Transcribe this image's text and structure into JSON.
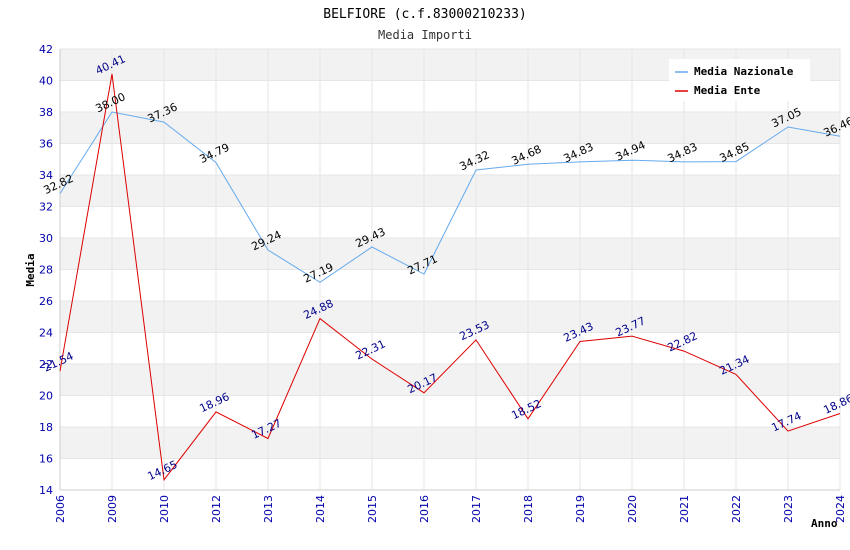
{
  "chart_data": {
    "type": "line",
    "title": "BELFIORE (c.f.83000210233)",
    "subtitle": "Media Importi",
    "xlabel": "Anno",
    "ylabel": "Media",
    "ylim": [
      14,
      42
    ],
    "yticks": [
      14,
      16,
      18,
      20,
      22,
      24,
      26,
      28,
      30,
      32,
      34,
      36,
      38,
      40,
      42
    ],
    "categories": [
      "2006",
      "2009",
      "2010",
      "2012",
      "2013",
      "2014",
      "2015",
      "2016",
      "2017",
      "2018",
      "2019",
      "2020",
      "2021",
      "2022",
      "2023",
      "2024"
    ],
    "legend_position": "top-right",
    "grid": true,
    "series": [
      {
        "name": "Media Nazionale",
        "color": "#66aaee",
        "values": [
          32.82,
          38.0,
          37.36,
          34.79,
          29.24,
          27.19,
          29.43,
          27.71,
          34.32,
          34.68,
          34.83,
          34.94,
          34.83,
          34.85,
          37.05,
          36.46
        ],
        "labels": [
          "32.82",
          "38.00",
          "37.36",
          "34.79",
          "29.24",
          "27.19",
          "29.43",
          "27.71",
          "34.32",
          "34.68",
          "34.83",
          "34.94",
          "34.83",
          "34.85",
          "37.05",
          "36.46"
        ]
      },
      {
        "name": "Media Ente",
        "color": "#dd0000",
        "values": [
          21.54,
          40.41,
          14.65,
          18.96,
          17.27,
          24.88,
          22.31,
          20.17,
          23.53,
          18.52,
          23.43,
          23.77,
          22.82,
          21.34,
          17.74,
          18.86
        ],
        "labels": [
          "21.54",
          "40.41",
          "14.65",
          "18.96",
          "17.27",
          "24.88",
          "22.31",
          "20.17",
          "23.53",
          "18.52",
          "23.43",
          "23.77",
          "22.82",
          "21.34",
          "17.74",
          "18.86"
        ]
      }
    ]
  }
}
